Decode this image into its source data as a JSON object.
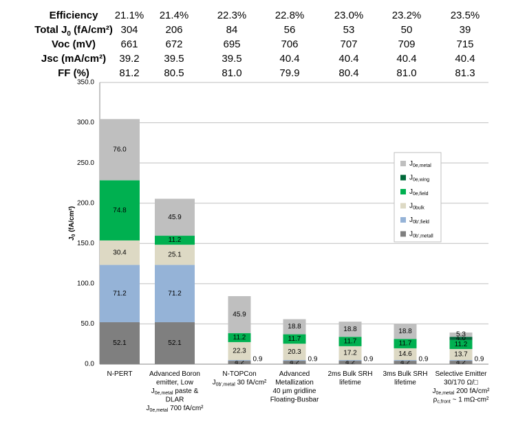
{
  "header_table": {
    "rows": [
      {
        "label": [
          "Efficiency"
        ],
        "values": [
          "21.1%",
          "21.4%",
          "22.3%",
          "22.8%",
          "23.0%",
          "23.2%",
          "23.5%"
        ]
      },
      {
        "label": [
          "Total J",
          "0",
          " (fA/cm²)"
        ],
        "values": [
          "304",
          "206",
          "84",
          "56",
          "53",
          "50",
          "39"
        ]
      },
      {
        "label": [
          "Voc (mV)"
        ],
        "values": [
          "661",
          "672",
          "695",
          "706",
          "707",
          "709",
          "715"
        ]
      },
      {
        "label": [
          "Jsc (mA/cm²)"
        ],
        "values": [
          "39.2",
          "39.5",
          "39.5",
          "40.4",
          "40.4",
          "40.4",
          "40.4"
        ]
      },
      {
        "label": [
          "FF (%)"
        ],
        "values": [
          "81.2",
          "80.5",
          "81.0",
          "79.9",
          "80.4",
          "81.0",
          "81.3"
        ]
      }
    ]
  },
  "chart_data": {
    "type": "stacked-bar",
    "y_label": [
      "J",
      "0",
      " (fA/cm²)"
    ],
    "categories": [
      [
        [
          "N-PERT"
        ]
      ],
      [
        [
          "Advanced Boron"
        ],
        [
          "emitter, Low"
        ],
        [
          "J",
          "0e,metal",
          " paste &"
        ],
        [
          "DLAR"
        ],
        [
          "J",
          "0e,metal",
          " 700 fA/cm²"
        ]
      ],
      [
        [
          "N-TOPCon"
        ],
        [
          "J",
          "0b',metal",
          " 30 fA/cm²"
        ]
      ],
      [
        [
          "Advanced"
        ],
        [
          "Metallization"
        ],
        [
          "40 µm gridline"
        ],
        [
          "Floating-Busbar"
        ]
      ],
      [
        [
          "2ms Bulk SRH"
        ],
        [
          "lifetime"
        ]
      ],
      [
        [
          "3ms Bulk SRH"
        ],
        [
          "lifetime"
        ]
      ],
      [
        [
          "Selective Emitter"
        ],
        [
          "30/170 Ω/□"
        ],
        [
          "J",
          "0e,metal",
          " 200 fA/cm²"
        ],
        [
          "ρ",
          "c,front",
          " ~ 1 mΩ-cm²"
        ]
      ]
    ],
    "series": [
      {
        "name": "J",
        "subscript": "0b',metall",
        "color": "#7f7f7f",
        "values": [
          52.1,
          52.1,
          4.2,
          4.2,
          4.2,
          4.2,
          4.2
        ],
        "value_labels": [
          "52.1",
          "52.1",
          "4.2",
          "4.2",
          "4.2",
          "4.2",
          "4.2"
        ]
      },
      {
        "name": "J",
        "subscript": "0b',field",
        "color": "#95b3d7",
        "values": [
          71.2,
          71.2,
          0.9,
          0.9,
          0.9,
          0.9,
          0.9
        ],
        "value_labels": [
          "71.2",
          "71.2",
          "0.9",
          "0.9",
          "0.9",
          "0.9",
          "0.9"
        ]
      },
      {
        "name": "J",
        "subscript": "0bulk",
        "color": "#ddd9c4",
        "values": [
          30.4,
          25.1,
          22.3,
          20.3,
          17.2,
          14.6,
          13.7
        ],
        "value_labels": [
          "30.4",
          "25.1",
          "22.3",
          "20.3",
          "17.2",
          "14.6",
          "13.7"
        ]
      },
      {
        "name": "J",
        "subscript": "0e,field",
        "color": "#00b050",
        "values": [
          74.8,
          11.2,
          11.2,
          11.7,
          11.7,
          11.7,
          11.2
        ],
        "value_labels": [
          "74.8",
          "11.2",
          "11.2",
          "11.7",
          "11.7",
          "11.7",
          "11.2"
        ]
      },
      {
        "name": "J",
        "subscript": "0e,wing",
        "color": "#00693a",
        "values": [
          null,
          null,
          null,
          null,
          null,
          null,
          4.0
        ],
        "value_labels": [
          null,
          null,
          null,
          null,
          null,
          null,
          "4.0"
        ]
      },
      {
        "name": "J",
        "subscript": "0e,metal",
        "color": "#bfbfbf",
        "values": [
          76.0,
          45.9,
          45.9,
          18.8,
          18.8,
          18.8,
          5.3
        ],
        "value_labels": [
          "76.0",
          "45.9",
          "45.9",
          "18.8",
          "18.8",
          "18.8",
          "5.3"
        ]
      }
    ],
    "ylim": [
      0,
      350
    ],
    "yticks": [
      {
        "value": 0,
        "label": "0.0"
      },
      {
        "value": 50,
        "label": "50.0"
      },
      {
        "value": 100,
        "label": "100.0"
      },
      {
        "value": 150,
        "label": "150.0"
      },
      {
        "value": 200,
        "label": "200.0"
      },
      {
        "value": 250,
        "label": "250.0"
      },
      {
        "value": 300,
        "label": "300.0"
      },
      {
        "value": 350,
        "label": "350.0"
      }
    ],
    "grid": true
  }
}
